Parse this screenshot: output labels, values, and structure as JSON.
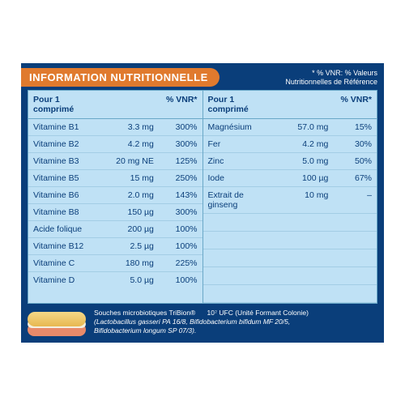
{
  "title": "INFORMATION NUTRITIONNELLE",
  "vnr_note_l1": "* % VNR: % Valeurs",
  "vnr_note_l2": "Nutritionnelles de Référence",
  "col_header": {
    "per": "Pour 1 comprimé",
    "vnr": "% VNR*"
  },
  "left_rows": [
    {
      "name": "Vitamine B1",
      "amt": "3.3 mg",
      "vnr": "300%"
    },
    {
      "name": "Vitamine B2",
      "amt": "4.2 mg",
      "vnr": "300%"
    },
    {
      "name": "Vitamine B3",
      "amt": "20 mg NE",
      "vnr": "125%"
    },
    {
      "name": "Vitamine B5",
      "amt": "15 mg",
      "vnr": "250%"
    },
    {
      "name": "Vitamine B6",
      "amt": "2.0 mg",
      "vnr": "143%"
    },
    {
      "name": "Vitamine B8",
      "amt": "150 µg",
      "vnr": "300%"
    },
    {
      "name": "Acide folique",
      "amt": "200 µg",
      "vnr": "100%"
    },
    {
      "name": "Vitamine B12",
      "amt": "2.5 µg",
      "vnr": "100%"
    },
    {
      "name": "Vitamine C",
      "amt": "180 mg",
      "vnr": "225%"
    },
    {
      "name": "Vitamine D",
      "amt": "5.0 µg",
      "vnr": "100%"
    }
  ],
  "right_rows": [
    {
      "name": "Magnésium",
      "amt": "57.0 mg",
      "vnr": "15%"
    },
    {
      "name": "Fer",
      "amt": "4.2 mg",
      "vnr": "30%"
    },
    {
      "name": "Zinc",
      "amt": "5.0 mg",
      "vnr": "50%"
    },
    {
      "name": "Iode",
      "amt": "100 µg",
      "vnr": "67%"
    },
    {
      "name": "Extrait de ginseng",
      "amt": "10 mg",
      "vnr": "–"
    }
  ],
  "footer": {
    "l1a": "Souches microbiotiques TriBion®",
    "l1b": "10⁷ UFC (Unité Formant Colonie)",
    "l2": "(Lactobacillus gasseri PA 16/8, Bifidobacterium bifidum MF 20/5,",
    "l3": "Bifidobacterium longum SP 07/3)."
  },
  "style": {
    "panel_bg": "#0a3e7a",
    "accent": "#e07a2e",
    "table_bg": "#bfe1f5",
    "grid": "#6aa8c8",
    "row_line": "#a3cde5",
    "text": "#0a3e7a",
    "on_dark": "#ffffff"
  }
}
